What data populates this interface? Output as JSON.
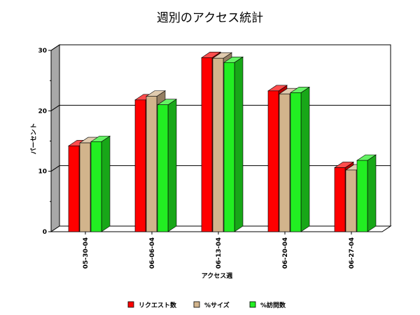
{
  "chart_data": {
    "type": "bar",
    "title": "週別のアクセス統計",
    "xlabel": "アクセス週",
    "ylabel": "パーセント",
    "categories": [
      "05-30-04",
      "06-06-04",
      "06-13-04",
      "06-20-04",
      "06-27-04"
    ],
    "series": [
      {
        "name": "リクエスト数",
        "color": "#ff0000",
        "values": [
          14.2,
          21.8,
          28.8,
          23.3,
          10.6
        ]
      },
      {
        "name": "%サイズ",
        "color": "#d2b48c",
        "values": [
          14.7,
          22.4,
          28.7,
          22.8,
          10.2
        ]
      },
      {
        "name": "%訪問数",
        "color": "#22ee22",
        "values": [
          14.9,
          21.0,
          28.0,
          23.0,
          11.8
        ]
      }
    ],
    "yticks": [
      0,
      10,
      20,
      30
    ],
    "ylim": [
      0,
      30
    ],
    "grid": true,
    "legend": "bottom"
  }
}
